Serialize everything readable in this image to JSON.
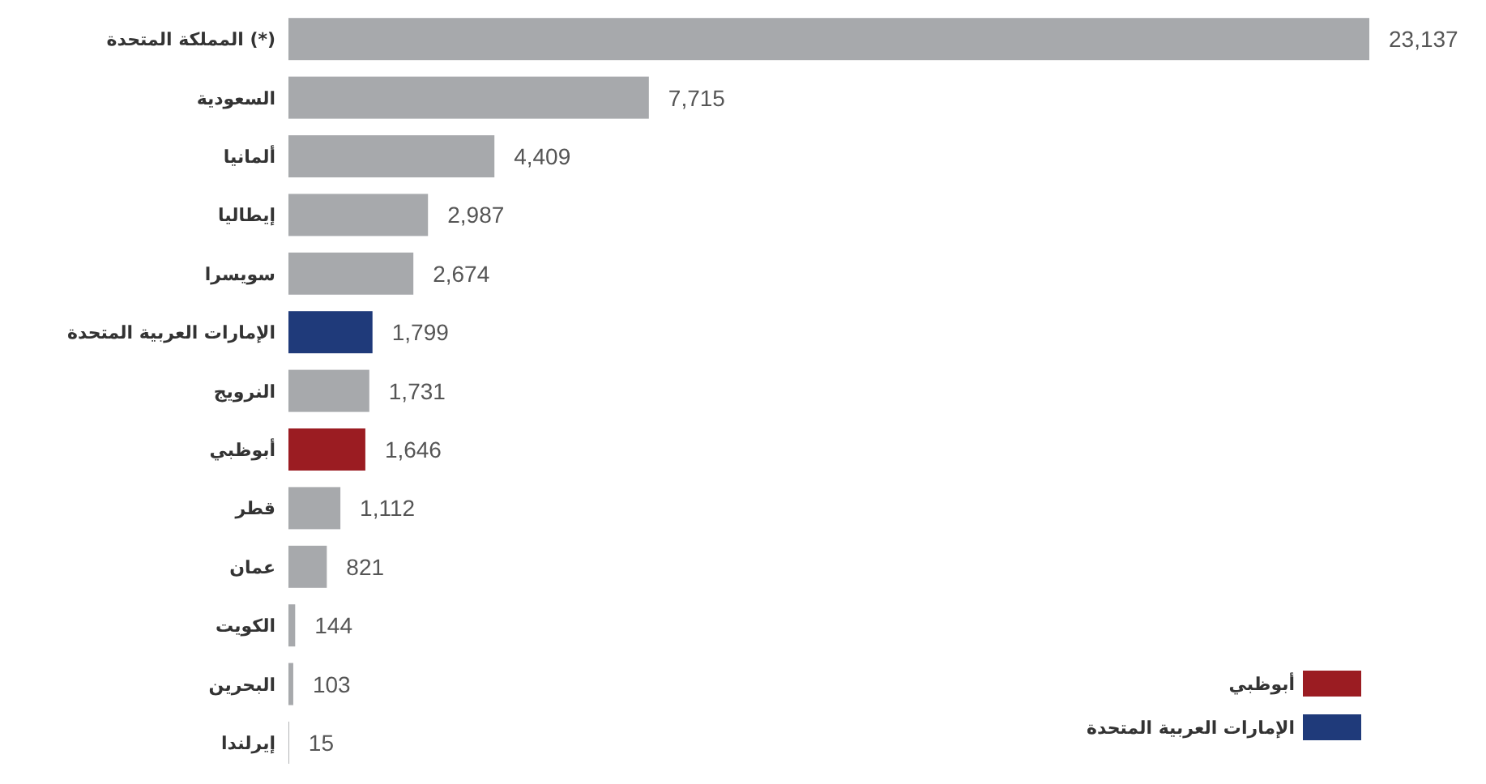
{
  "chart_data": {
    "type": "bar",
    "orientation": "horizontal",
    "legend": "bottom right",
    "categories": [
      "المملكة المتحدة (*)",
      "السعودية",
      "ألمانيا",
      "إيطاليا",
      "سويسرا",
      "الإمارات العربية المتحدة",
      "النرويج",
      "أبوظبي",
      "قطر",
      "عمان",
      "الكويت",
      "البحرين",
      "إيرلندا"
    ],
    "series": [
      {
        "color": "#a7a9ac",
        "values": [
          23137,
          7715,
          4409,
          2987,
          2674,
          null,
          1731,
          null,
          1112,
          821,
          144,
          103,
          15
        ],
        "value_labels": [
          "23,137",
          "7,715",
          "4,409",
          "2,987",
          "2,674",
          null,
          "1,731",
          null,
          "1,112",
          "821",
          "144",
          "103",
          "15"
        ]
      },
      {
        "name": "أبوظبي",
        "color": "#9b1c22",
        "values": [
          null,
          null,
          null,
          null,
          null,
          null,
          null,
          1646,
          null,
          null,
          null,
          null,
          null
        ],
        "value_labels": [
          null,
          null,
          null,
          null,
          null,
          null,
          null,
          "1,646",
          null,
          null,
          null,
          null,
          null
        ]
      },
      {
        "name": "الإمارات العربية المتحدة",
        "color": "#1f3a7a",
        "values": [
          null,
          null,
          null,
          null,
          null,
          1799,
          null,
          null,
          null,
          null,
          null,
          null,
          null
        ],
        "value_labels": [
          null,
          null,
          null,
          null,
          null,
          "1,799",
          null,
          null,
          null,
          null,
          null,
          null,
          null
        ]
      }
    ]
  }
}
